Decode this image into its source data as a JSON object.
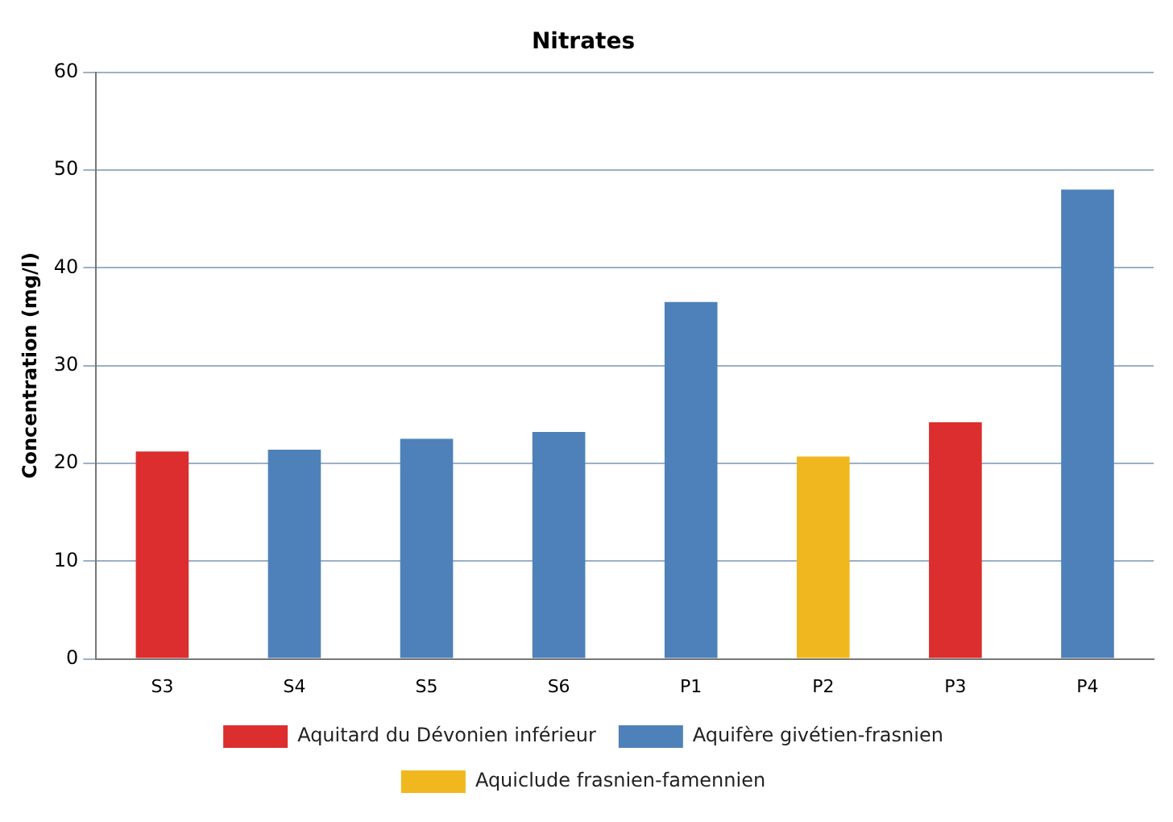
{
  "chart_data": {
    "type": "bar",
    "title": "Nitrates",
    "ylabel": "Concentration (mg/l)",
    "categories": [
      "S3",
      "S4",
      "S5",
      "S6",
      "P1",
      "P2",
      "P3",
      "P4"
    ],
    "series": [
      {
        "name": "Aquitard du Dévonien inférieur",
        "color": "#dc2e2e",
        "values": [
          21.2,
          null,
          null,
          null,
          null,
          null,
          24.2,
          null
        ]
      },
      {
        "name": "Aquifère givétien-frasnien",
        "color": "#4e81b9",
        "values": [
          null,
          21.4,
          22.5,
          23.2,
          36.5,
          null,
          null,
          48.0
        ]
      },
      {
        "name": "Aquiclude frasnien-famennien",
        "color": "#f0b81e",
        "values": [
          null,
          null,
          null,
          null,
          null,
          20.7,
          null,
          null
        ]
      }
    ],
    "ylim": [
      0,
      60
    ],
    "yticks": [
      0,
      10,
      20,
      30,
      40,
      50,
      60
    ],
    "grid": "y",
    "legend": "bottom"
  }
}
